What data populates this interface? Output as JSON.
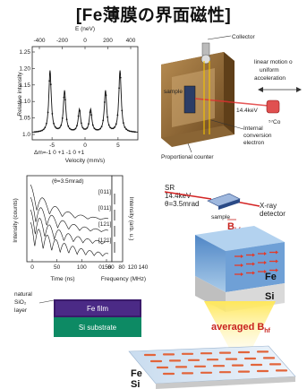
{
  "title": "[Fe薄膜の界面磁性]",
  "mossbauer": {
    "ylabel": "Relative intensity",
    "xlabel": "Velocity (mm/s)",
    "top_label": "E (neV)",
    "top_ticks": [
      "-400",
      "-200",
      "0",
      "200",
      "400"
    ],
    "y_ticks": [
      "1.0",
      "1.05",
      "1.10",
      "1.15",
      "1.20",
      "1.25"
    ],
    "x_ticks": [
      "-5",
      "0",
      "5"
    ],
    "dm_label": "Δm=-1 0 +1 -1 0 +1",
    "peaks": [
      -5.3,
      -3.1,
      -0.85,
      0.85,
      3.1,
      5.3
    ]
  },
  "apparatus": {
    "collector": "Collector",
    "linear_motion": "linear motion o",
    "uniform": "uniform",
    "acceleration": "acceleration",
    "sample": "sample",
    "energy": "14.4keV",
    "source": "⁵⁷Co",
    "internal1": "Internal",
    "internal2": "conversion",
    "internal3": "electron",
    "counter": "Proportional counter"
  },
  "nrs": {
    "theta": "(θ=3.5mrad)",
    "ylabel": "Intensity (counts)",
    "xlabel": "Time (ns)",
    "x_ticks": [
      "0",
      "50",
      "100",
      "150"
    ],
    "freq_label": "Frequency (MHz)",
    "freq_ticks": [
      "0",
      "60",
      "80",
      "120",
      "140"
    ],
    "right_label": "Intensity (arb. u.)",
    "dirs": [
      "[011]",
      "[011]",
      "[121]",
      "[121]"
    ]
  },
  "sr": {
    "line1": "SR",
    "line2": "14.4keV",
    "line3": "θ=3.5mrad",
    "sample": "sample",
    "detector1": "X-ray",
    "detector2": "detector",
    "bhf": "B",
    "bhf_sub": "hf"
  },
  "layers": {
    "natural": "natural",
    "sio2": "SiO₂",
    "layer": "layer",
    "fe_film": "Fe film",
    "si_sub": "Si substrate"
  },
  "block": {
    "fe": "Fe",
    "si": "Si",
    "averaged": "averaged",
    "b": "B",
    "b_sub": "hf",
    "fe2": "Fe",
    "si2": "Si"
  }
}
